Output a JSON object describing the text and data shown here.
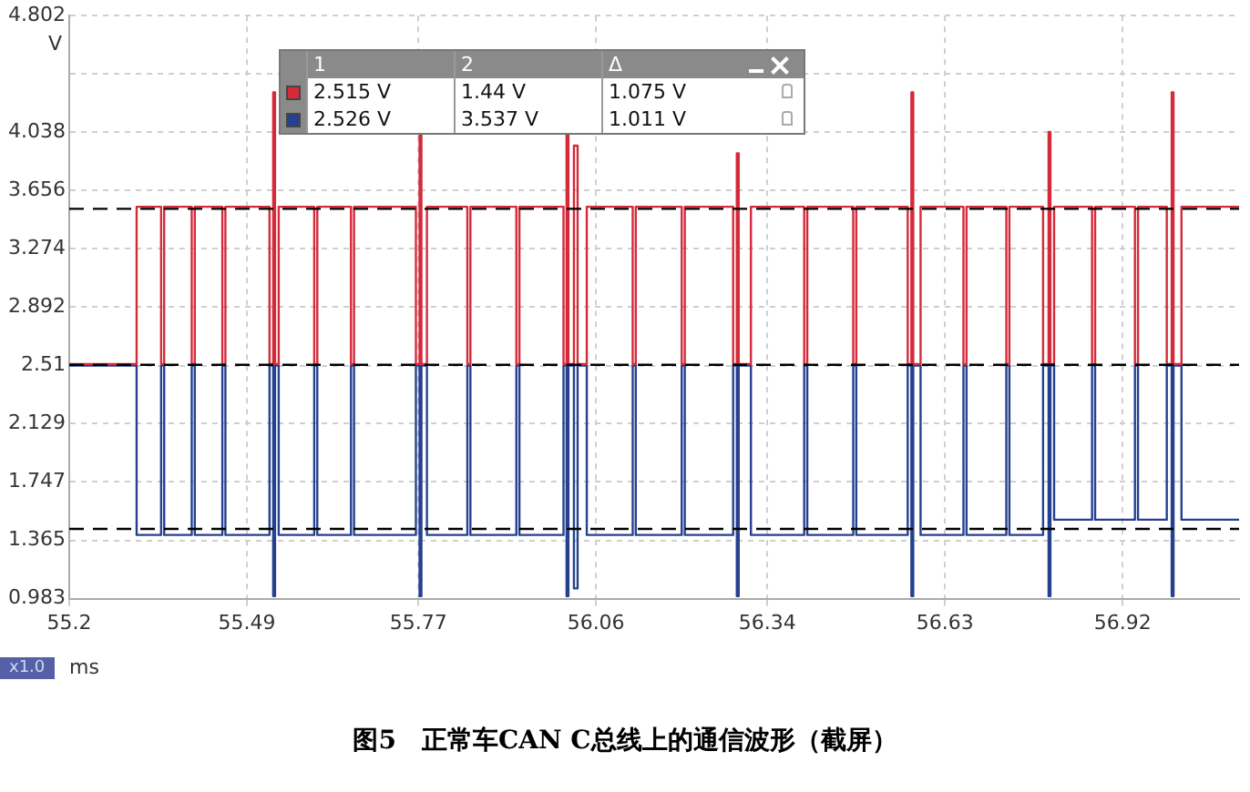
{
  "chart_data": {
    "type": "step",
    "title": "图5　正常车CAN C总线上的通信波形（截屏）",
    "xlabel": "ms",
    "ylabel": "V",
    "xlim": [
      55.2,
      57.11
    ],
    "xticks": [
      55.2,
      55.49,
      55.77,
      56.06,
      56.34,
      56.63,
      56.92
    ],
    "ylim": [
      0.983,
      4.802
    ],
    "yticks": [
      0.983,
      1.365,
      1.747,
      2.129,
      {
        "value": 2.51,
        "label": "2.51"
      },
      2.892,
      3.274,
      3.656,
      4.038,
      {
        "value": 4.42,
        "label": null
      },
      4.802
    ],
    "grid": true,
    "legend": false,
    "line_style": "solid",
    "marker": "none",
    "x": [
      55.2,
      55.31,
      55.35,
      55.355,
      55.4,
      55.405,
      55.45,
      55.455,
      55.527,
      55.533,
      55.536,
      55.542,
      55.6,
      55.605,
      55.66,
      55.665,
      55.766,
      55.772,
      55.775,
      55.784,
      55.85,
      55.855,
      55.93,
      55.935,
      56.007,
      56.012,
      56.015,
      56.024,
      56.03,
      56.045,
      56.12,
      56.125,
      56.2,
      56.205,
      56.284,
      56.29,
      56.293,
      56.313,
      56.4,
      56.405,
      56.48,
      56.485,
      56.569,
      56.575,
      56.578,
      56.59,
      56.66,
      56.665,
      56.73,
      56.735,
      56.79,
      56.799,
      56.802,
      56.808,
      56.87,
      56.875,
      56.94,
      56.945,
      56.992,
      57.0,
      57.003,
      57.016,
      57.11
    ],
    "series": [
      {
        "color": "#d42a3a",
        "values": [
          2.52,
          3.55,
          2.52,
          3.55,
          2.52,
          3.55,
          2.52,
          3.55,
          2.52,
          4.3,
          2.52,
          3.55,
          2.52,
          3.55,
          2.52,
          3.55,
          2.52,
          4.04,
          2.52,
          3.55,
          2.52,
          3.55,
          2.52,
          3.55,
          2.52,
          4.04,
          2.52,
          3.95,
          2.52,
          3.55,
          2.52,
          3.55,
          2.52,
          3.55,
          2.52,
          3.9,
          2.52,
          3.55,
          2.52,
          3.55,
          2.52,
          3.55,
          2.52,
          4.3,
          2.52,
          3.55,
          2.52,
          3.55,
          2.52,
          3.55,
          2.52,
          4.04,
          2.52,
          3.55,
          2.52,
          3.55,
          2.52,
          3.55,
          2.52,
          4.3,
          2.52,
          3.55,
          3.55
        ]
      },
      {
        "color": "#25408f",
        "values": [
          2.51,
          1.4,
          2.51,
          1.4,
          2.51,
          1.4,
          2.51,
          1.4,
          2.51,
          1.0,
          2.51,
          1.4,
          2.51,
          1.4,
          2.51,
          1.4,
          2.51,
          1.0,
          2.51,
          1.4,
          2.51,
          1.4,
          2.51,
          1.4,
          2.51,
          1.0,
          2.51,
          1.05,
          2.51,
          1.4,
          2.51,
          1.4,
          2.51,
          1.4,
          2.51,
          1.0,
          2.51,
          1.4,
          2.51,
          1.4,
          2.51,
          1.4,
          2.51,
          1.0,
          2.51,
          1.4,
          2.51,
          1.4,
          2.51,
          1.4,
          2.51,
          1.0,
          2.51,
          1.5,
          2.51,
          1.5,
          2.51,
          1.5,
          2.51,
          1.0,
          2.51,
          1.5,
          1.5
        ]
      }
    ],
    "ref_lines": [
      {
        "axis": "y",
        "value": 3.537,
        "color": "#000000",
        "line_style": "dashed"
      },
      {
        "axis": "y",
        "value": 2.515,
        "color": "#000000",
        "line_style": "dashed"
      },
      {
        "axis": "y",
        "value": 1.44,
        "color": "#000000",
        "line_style": "dashed"
      }
    ],
    "annotations": [
      "1",
      "2",
      "Δ",
      "2.515 V",
      "1.44 V",
      "1.075 V",
      "2.526 V",
      "3.537 V",
      "1.011 V",
      "x1.0"
    ]
  }
}
